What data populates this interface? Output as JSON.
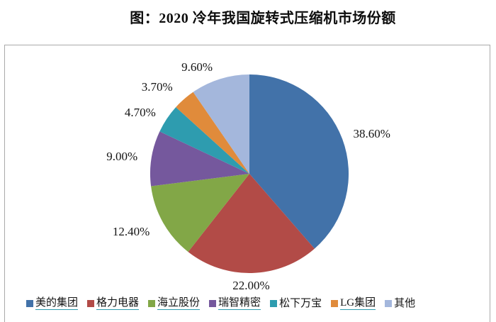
{
  "title": "图：2020 冷年我国旋转式压缩机市场份额",
  "chart_data": {
    "type": "pie",
    "title": "图：2020 冷年我国旋转式压缩机市场份额",
    "categories": [
      "美的集团",
      "格力电器",
      "海立股份",
      "瑞智精密",
      "松下万宝",
      "LG集团",
      "其他"
    ],
    "values": [
      38.6,
      22.0,
      12.4,
      9.0,
      4.7,
      3.7,
      9.6
    ],
    "data_labels": [
      "38.60%",
      "22.00%",
      "12.40%",
      "9.00%",
      "4.70%",
      "3.70%",
      "9.60%"
    ],
    "colors": [
      "#4272A9",
      "#B24B47",
      "#82A747",
      "#75589D",
      "#2E9CAF",
      "#E08B3B",
      "#A4B7DC"
    ],
    "start_angle_deg": 0,
    "direction": "clockwise",
    "legend_position": "bottom",
    "legend_link_style": [
      true,
      true,
      true,
      true,
      false,
      true,
      false
    ],
    "link_underline_color": "#2E9CAF"
  }
}
